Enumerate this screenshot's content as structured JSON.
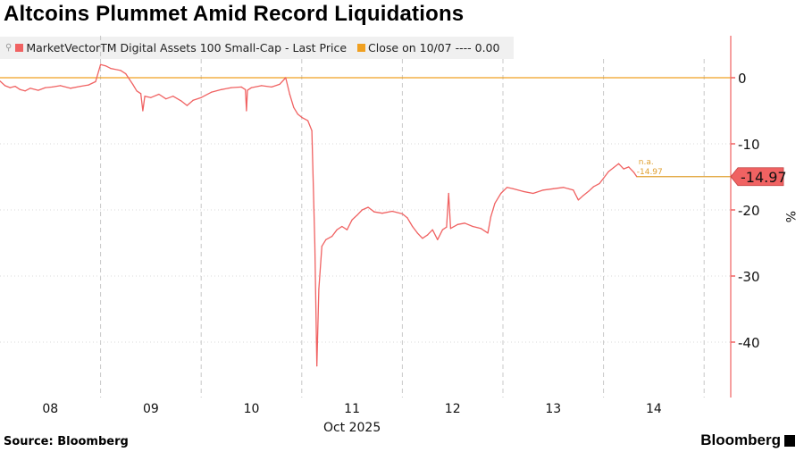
{
  "title": "Altcoins Plummet Amid Record Liquidations",
  "legend": [
    {
      "label": "MarketVectorTM Digital Assets 100 Small-Cap - Last Price",
      "color": "#f06262"
    },
    {
      "label": "Close on 10/07 ---- 0.00",
      "color": "#f0a020"
    }
  ],
  "footer": {
    "source": "Source: Bloomberg",
    "logo": "Bloomberg"
  },
  "chart_data": {
    "type": "line",
    "title": "Altcoins Plummet Amid Record Liquidations",
    "xlabel": "Oct 2025",
    "ylabel": "%",
    "x_ticks": [
      {
        "t": 8.5,
        "label": "08"
      },
      {
        "t": 9.5,
        "label": "09"
      },
      {
        "t": 10.5,
        "label": "10"
      },
      {
        "t": 11.5,
        "label": "11"
      },
      {
        "t": 12.5,
        "label": "12"
      },
      {
        "t": 13.5,
        "label": "13"
      },
      {
        "t": 14.5,
        "label": "14"
      }
    ],
    "xlim": [
      8,
      15.27
    ],
    "ylim": [
      -48.5,
      6.5
    ],
    "y_ticks": [
      0,
      -10,
      -20,
      -30,
      -40
    ],
    "y_tick_labels": [
      "0",
      "-10",
      "-20",
      "-30",
      "-40"
    ],
    "grid": true,
    "series": [
      {
        "name": "MarketVectorTM Digital Assets 100 Small-Cap - Last Price",
        "color": "#f06262",
        "x": [
          8.0,
          8.05,
          8.1,
          8.15,
          8.2,
          8.25,
          8.3,
          8.38,
          8.45,
          8.52,
          8.6,
          8.7,
          8.8,
          8.88,
          8.95,
          9.0,
          9.05,
          9.1,
          9.2,
          9.25,
          9.32,
          9.36,
          9.4,
          9.42,
          9.44,
          9.5,
          9.58,
          9.65,
          9.72,
          9.8,
          9.86,
          9.92,
          10.0,
          10.1,
          10.2,
          10.3,
          10.4,
          10.44,
          10.45,
          10.46,
          10.5,
          10.6,
          10.7,
          10.78,
          10.84,
          10.88,
          10.92,
          10.96,
          11.0,
          11.06,
          11.1,
          11.13,
          11.15,
          11.17,
          11.2,
          11.24,
          11.3,
          11.35,
          11.4,
          11.45,
          11.5,
          11.55,
          11.6,
          11.66,
          11.72,
          11.8,
          11.9,
          12.0,
          12.05,
          12.1,
          12.15,
          12.2,
          12.25,
          12.3,
          12.35,
          12.4,
          12.44,
          12.46,
          12.48,
          12.55,
          12.62,
          12.7,
          12.78,
          12.85,
          12.88,
          12.92,
          12.98,
          13.04,
          13.1,
          13.2,
          13.3,
          13.4,
          13.5,
          13.6,
          13.7,
          13.75,
          13.8,
          13.85,
          13.9,
          13.96,
          14.0,
          14.05,
          14.1,
          14.15,
          14.2,
          14.25,
          14.3,
          14.33
        ],
        "y": [
          -0.5,
          -1.2,
          -1.5,
          -1.3,
          -1.8,
          -2.0,
          -1.6,
          -1.9,
          -1.5,
          -1.4,
          -1.2,
          -1.6,
          -1.3,
          -1.1,
          -0.6,
          2.0,
          1.8,
          1.4,
          1.1,
          0.6,
          -1.0,
          -2.0,
          -2.4,
          -5.0,
          -2.8,
          -3.0,
          -2.5,
          -3.2,
          -2.8,
          -3.5,
          -4.2,
          -3.4,
          -3.0,
          -2.2,
          -1.8,
          -1.5,
          -1.4,
          -1.8,
          -5.0,
          -1.9,
          -1.5,
          -1.2,
          -1.4,
          -1.0,
          0.0,
          -2.5,
          -4.5,
          -5.5,
          -6.0,
          -6.5,
          -8.0,
          -25.0,
          -43.6,
          -32.0,
          -25.5,
          -24.5,
          -24.0,
          -23.0,
          -22.5,
          -23.0,
          -21.5,
          -20.8,
          -20.0,
          -19.6,
          -20.3,
          -20.5,
          -20.2,
          -20.6,
          -21.2,
          -22.5,
          -23.5,
          -24.3,
          -23.8,
          -23.0,
          -24.5,
          -23.0,
          -22.6,
          -17.5,
          -22.8,
          -22.2,
          -22.0,
          -22.5,
          -22.8,
          -23.5,
          -21.0,
          -19.0,
          -17.5,
          -16.6,
          -16.8,
          -17.2,
          -17.5,
          -17.0,
          -16.8,
          -16.6,
          -17.0,
          -18.5,
          -17.8,
          -17.2,
          -16.5,
          -16.0,
          -15.2,
          -14.2,
          -13.6,
          -13.0,
          -13.8,
          -13.5,
          -14.3,
          -14.97
        ]
      },
      {
        "name": "Close on 10/07",
        "color": "#f0a020",
        "value": 0.0
      }
    ],
    "last_value": {
      "label": "-14.97",
      "value": -14.97,
      "color": "#f06262"
    },
    "annotation": {
      "lines": [
        "n.a.",
        "-14.97"
      ],
      "color": "#e0a030"
    }
  }
}
